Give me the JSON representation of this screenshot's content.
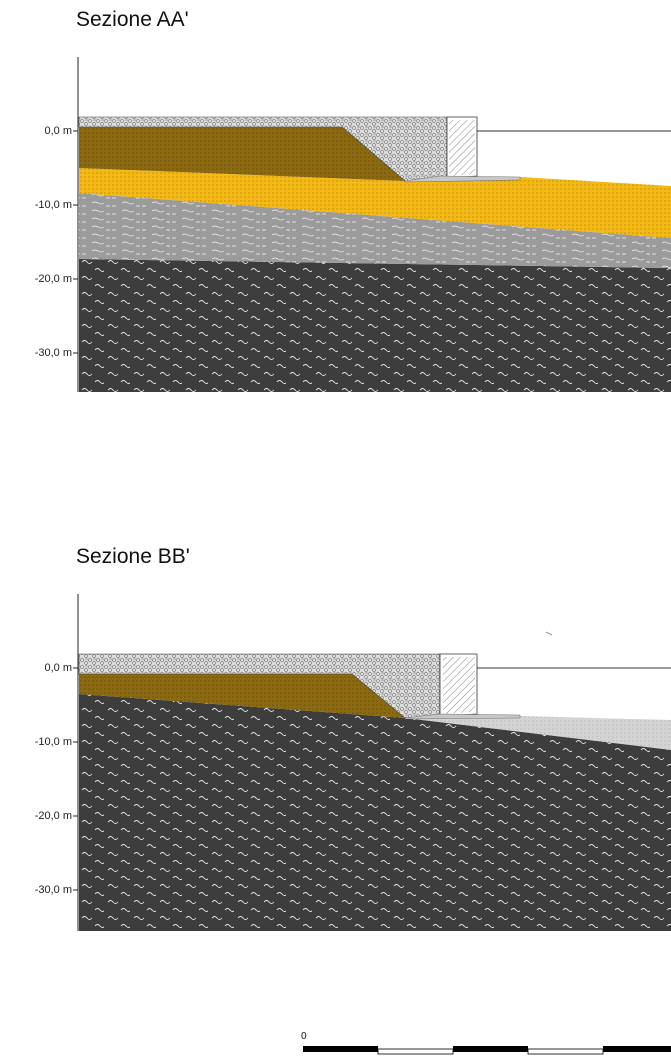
{
  "sections": [
    {
      "id": "a",
      "title": "Sezione AA'",
      "ticks": [
        "0,0 m",
        "-10,0 m",
        "-20,0 m",
        "-30,0 m"
      ],
      "colors": {
        "fill_brown": "#8c6a12",
        "sand_yellow": "#f4b914",
        "silt_grey": "#9b9b9b",
        "bedrock_dark": "#3d3d3d",
        "rubble": "#d8d8d8"
      }
    },
    {
      "id": "b",
      "title": "Sezione BB'",
      "ticks": [
        "0,0 m",
        "-10,0 m",
        "-20,0 m",
        "-30,0 m"
      ],
      "colors": {
        "fill_brown": "#8c6a12",
        "bedrock_dark": "#3d3d3d",
        "seabed_light": "#d4d4d4",
        "rubble": "#d8d8d8"
      }
    }
  ],
  "scale_bar": {
    "label": "0"
  }
}
